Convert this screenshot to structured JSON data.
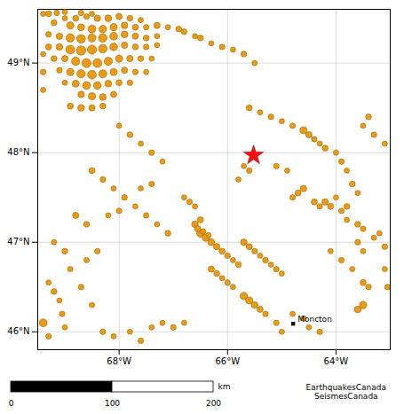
{
  "chart_data": {
    "type": "scatter",
    "xlim": [
      -69.5,
      -63.0
    ],
    "ylim": [
      45.8,
      49.6
    ],
    "xticks": [
      {
        "value": -68,
        "label": "68°W"
      },
      {
        "value": -66,
        "label": "66°W"
      },
      {
        "value": -64,
        "label": "64°W"
      }
    ],
    "yticks": [
      {
        "value": 46,
        "label": "46°N"
      },
      {
        "value": 47,
        "label": "47°N"
      },
      {
        "value": 48,
        "label": "48°N"
      },
      {
        "value": 49,
        "label": "49°N"
      }
    ],
    "grid": true,
    "series": [
      {
        "marker": "circle",
        "color": "#e8960a",
        "points": [
          [
            -69.0,
            49.5,
            8
          ],
          [
            -68.8,
            49.5,
            14
          ],
          [
            -68.6,
            49.52,
            10
          ],
          [
            -68.4,
            49.5,
            18
          ],
          [
            -68.2,
            49.5,
            22
          ],
          [
            -68.0,
            49.52,
            16
          ],
          [
            -67.8,
            49.5,
            12
          ],
          [
            -67.6,
            49.48,
            8
          ],
          [
            -69.2,
            49.45,
            12
          ],
          [
            -68.9,
            49.42,
            30
          ],
          [
            -68.7,
            49.4,
            24
          ],
          [
            -68.5,
            49.38,
            40
          ],
          [
            -68.3,
            49.38,
            35
          ],
          [
            -68.1,
            49.4,
            28
          ],
          [
            -67.9,
            49.42,
            20
          ],
          [
            -67.7,
            49.4,
            14
          ],
          [
            -67.5,
            49.4,
            10
          ],
          [
            -67.3,
            49.42,
            16
          ],
          [
            -67.1,
            49.4,
            8
          ],
          [
            -66.9,
            49.38,
            12
          ],
          [
            -69.3,
            49.32,
            10
          ],
          [
            -69.1,
            49.3,
            18
          ],
          [
            -68.9,
            49.28,
            50
          ],
          [
            -68.7,
            49.27,
            60
          ],
          [
            -68.5,
            49.28,
            45
          ],
          [
            -68.3,
            49.28,
            55
          ],
          [
            -68.1,
            49.3,
            38
          ],
          [
            -67.9,
            49.32,
            22
          ],
          [
            -67.7,
            49.3,
            16
          ],
          [
            -67.5,
            49.28,
            12
          ],
          [
            -67.3,
            49.3,
            8
          ],
          [
            -69.3,
            49.18,
            14
          ],
          [
            -69.1,
            49.18,
            20
          ],
          [
            -68.9,
            49.15,
            65
          ],
          [
            -68.7,
            49.14,
            80
          ],
          [
            -68.5,
            49.15,
            70
          ],
          [
            -68.3,
            49.16,
            55
          ],
          [
            -68.1,
            49.18,
            35
          ],
          [
            -67.9,
            49.2,
            18
          ],
          [
            -67.7,
            49.18,
            12
          ],
          [
            -67.5,
            49.18,
            10
          ],
          [
            -67.3,
            49.2,
            8
          ],
          [
            -69.2,
            49.05,
            12
          ],
          [
            -69.0,
            49.05,
            16
          ],
          [
            -68.8,
            49.02,
            50
          ],
          [
            -68.6,
            49.0,
            70
          ],
          [
            -68.4,
            49.0,
            65
          ],
          [
            -68.2,
            49.02,
            45
          ],
          [
            -68.0,
            49.05,
            30
          ],
          [
            -67.8,
            49.05,
            18
          ],
          [
            -67.6,
            49.05,
            12
          ],
          [
            -67.4,
            49.05,
            8
          ],
          [
            -69.1,
            48.92,
            10
          ],
          [
            -68.9,
            48.9,
            30
          ],
          [
            -68.7,
            48.88,
            50
          ],
          [
            -68.5,
            48.87,
            60
          ],
          [
            -68.3,
            48.88,
            45
          ],
          [
            -68.1,
            48.9,
            28
          ],
          [
            -67.9,
            48.92,
            16
          ],
          [
            -67.7,
            48.9,
            10
          ],
          [
            -67.5,
            48.9,
            8
          ],
          [
            -69.0,
            48.78,
            8
          ],
          [
            -68.8,
            48.77,
            25
          ],
          [
            -68.6,
            48.75,
            40
          ],
          [
            -68.4,
            48.75,
            35
          ],
          [
            -68.2,
            48.77,
            22
          ],
          [
            -68.0,
            48.78,
            14
          ],
          [
            -67.8,
            48.78,
            10
          ],
          [
            -68.7,
            48.65,
            18
          ],
          [
            -68.5,
            48.63,
            28
          ],
          [
            -68.3,
            48.62,
            22
          ],
          [
            -68.1,
            48.65,
            14
          ],
          [
            -68.9,
            48.52,
            14
          ],
          [
            -68.7,
            48.5,
            20
          ],
          [
            -68.5,
            48.5,
            16
          ],
          [
            -68.3,
            48.52,
            12
          ],
          [
            -69.4,
            49.55,
            8
          ],
          [
            -69.3,
            49.55,
            12
          ],
          [
            -69.15,
            49.56,
            10
          ],
          [
            -69.0,
            49.57,
            8
          ],
          [
            -68.7,
            49.56,
            10
          ],
          [
            -68.5,
            49.55,
            8
          ],
          [
            -66.8,
            49.35,
            10
          ],
          [
            -66.6,
            49.3,
            8
          ],
          [
            -66.5,
            49.28,
            12
          ],
          [
            -66.3,
            49.22,
            8
          ],
          [
            -66.1,
            49.18,
            10
          ],
          [
            -65.9,
            49.15,
            8
          ],
          [
            -65.7,
            49.1,
            12
          ],
          [
            -65.5,
            49.0,
            8
          ],
          [
            -69.4,
            49.1,
            8
          ],
          [
            -69.4,
            48.9,
            10
          ],
          [
            -69.4,
            48.7,
            8
          ],
          [
            -68.0,
            48.3,
            8
          ],
          [
            -67.8,
            48.2,
            12
          ],
          [
            -67.6,
            48.1,
            8
          ],
          [
            -67.4,
            48.0,
            10
          ],
          [
            -67.2,
            47.9,
            8
          ],
          [
            -68.5,
            47.8,
            14
          ],
          [
            -68.3,
            47.7,
            10
          ],
          [
            -68.1,
            47.6,
            8
          ],
          [
            -67.9,
            47.5,
            12
          ],
          [
            -67.7,
            47.4,
            8
          ],
          [
            -67.5,
            47.3,
            10
          ],
          [
            -67.3,
            47.2,
            8
          ],
          [
            -67.1,
            47.1,
            12
          ],
          [
            -68.8,
            47.3,
            16
          ],
          [
            -68.6,
            47.2,
            12
          ],
          [
            -69.2,
            47.0,
            8
          ],
          [
            -69.0,
            46.9,
            12
          ],
          [
            -68.9,
            46.7,
            8
          ],
          [
            -68.7,
            46.5,
            10
          ],
          [
            -68.5,
            46.3,
            8
          ],
          [
            -69.4,
            46.1,
            40
          ],
          [
            -69.3,
            45.95,
            10
          ],
          [
            -68.3,
            46.0,
            10
          ],
          [
            -68.1,
            45.95,
            8
          ],
          [
            -67.8,
            46.0,
            8
          ],
          [
            -67.6,
            45.9,
            10
          ],
          [
            -67.4,
            46.05,
            8
          ],
          [
            -67.2,
            46.1,
            8
          ],
          [
            -67.0,
            46.05,
            10
          ],
          [
            -66.8,
            46.1,
            8
          ],
          [
            -66.5,
            47.1,
            35
          ],
          [
            -66.4,
            47.05,
            28
          ],
          [
            -66.3,
            47.0,
            22
          ],
          [
            -66.2,
            46.95,
            18
          ],
          [
            -66.1,
            46.9,
            14
          ],
          [
            -66.0,
            46.85,
            10
          ],
          [
            -65.9,
            46.8,
            8
          ],
          [
            -65.8,
            46.75,
            12
          ],
          [
            -66.6,
            47.2,
            20
          ],
          [
            -66.55,
            47.15,
            16
          ],
          [
            -66.5,
            47.25,
            14
          ],
          [
            -66.45,
            47.12,
            10
          ],
          [
            -66.35,
            47.08,
            8
          ],
          [
            -65.7,
            47.0,
            18
          ],
          [
            -65.6,
            46.95,
            14
          ],
          [
            -65.5,
            46.9,
            10
          ],
          [
            -65.4,
            46.85,
            8
          ],
          [
            -65.3,
            46.8,
            12
          ],
          [
            -65.2,
            46.75,
            8
          ],
          [
            -65.1,
            46.7,
            10
          ],
          [
            -65.0,
            46.65,
            8
          ],
          [
            -66.3,
            46.7,
            16
          ],
          [
            -66.2,
            46.65,
            12
          ],
          [
            -66.1,
            46.6,
            8
          ],
          [
            -66.0,
            46.55,
            10
          ],
          [
            -65.9,
            46.5,
            8
          ],
          [
            -65.7,
            46.4,
            32
          ],
          [
            -65.6,
            46.35,
            26
          ],
          [
            -65.5,
            46.3,
            20
          ],
          [
            -65.4,
            46.25,
            14
          ],
          [
            -65.3,
            46.2,
            10
          ],
          [
            -65.1,
            46.1,
            10
          ],
          [
            -65.0,
            46.0,
            8
          ],
          [
            -64.8,
            46.2,
            8
          ],
          [
            -64.6,
            46.15,
            10
          ],
          [
            -64.5,
            46.05,
            8
          ],
          [
            -64.3,
            46.0,
            10
          ],
          [
            -64.1,
            46.9,
            8
          ],
          [
            -63.9,
            46.8,
            10
          ],
          [
            -63.7,
            46.7,
            8
          ],
          [
            -63.5,
            46.55,
            14
          ],
          [
            -63.4,
            46.5,
            10
          ],
          [
            -63.6,
            47.0,
            10
          ],
          [
            -63.5,
            46.9,
            8
          ],
          [
            -63.2,
            47.1,
            8
          ],
          [
            -63.1,
            46.95,
            10
          ],
          [
            -64.2,
            47.45,
            18
          ],
          [
            -64.1,
            47.4,
            14
          ],
          [
            -63.9,
            47.35,
            10
          ],
          [
            -63.8,
            47.25,
            8
          ],
          [
            -63.6,
            47.2,
            12
          ],
          [
            -64.6,
            47.6,
            18
          ],
          [
            -64.7,
            47.55,
            14
          ],
          [
            -64.8,
            47.5,
            10
          ],
          [
            -64.4,
            47.45,
            14
          ],
          [
            -64.3,
            47.4,
            10
          ],
          [
            -64.0,
            47.5,
            8
          ],
          [
            -63.8,
            47.4,
            12
          ],
          [
            -63.5,
            47.15,
            10
          ],
          [
            -63.3,
            47.05,
            8
          ],
          [
            -64.6,
            48.25,
            26
          ],
          [
            -64.5,
            48.2,
            16
          ],
          [
            -64.4,
            48.15,
            10
          ],
          [
            -64.3,
            48.1,
            8
          ],
          [
            -64.2,
            48.05,
            12
          ],
          [
            -64.8,
            48.3,
            10
          ],
          [
            -65.0,
            48.35,
            8
          ],
          [
            -65.2,
            48.4,
            10
          ],
          [
            -65.4,
            48.45,
            8
          ],
          [
            -65.6,
            48.5,
            12
          ],
          [
            -64.0,
            48.0,
            8
          ],
          [
            -63.9,
            47.9,
            10
          ],
          [
            -63.8,
            47.8,
            8
          ],
          [
            -63.7,
            47.65,
            12
          ],
          [
            -63.6,
            47.55,
            8
          ],
          [
            -64.9,
            47.8,
            8
          ],
          [
            -65.1,
            47.85,
            10
          ],
          [
            -65.7,
            47.85,
            8
          ],
          [
            -65.6,
            47.8,
            10
          ],
          [
            -65.8,
            47.7,
            8
          ],
          [
            -63.5,
            48.3,
            8
          ],
          [
            -63.3,
            48.2,
            10
          ],
          [
            -63.1,
            48.1,
            8
          ],
          [
            -63.4,
            48.4,
            12
          ],
          [
            -63.5,
            46.3,
            30
          ],
          [
            -63.6,
            46.25,
            22
          ],
          [
            -63.1,
            46.7,
            8
          ],
          [
            -63.05,
            46.5,
            10
          ],
          [
            -69.3,
            46.55,
            8
          ],
          [
            -69.2,
            46.45,
            12
          ],
          [
            -69.1,
            46.35,
            8
          ],
          [
            -69.05,
            46.2,
            10
          ],
          [
            -69.0,
            46.05,
            8
          ],
          [
            -68.6,
            46.8,
            8
          ],
          [
            -68.4,
            46.9,
            10
          ],
          [
            -68.2,
            47.3,
            8
          ],
          [
            -68.0,
            47.35,
            10
          ],
          [
            -67.6,
            47.6,
            8
          ],
          [
            -67.4,
            47.65,
            10
          ],
          [
            -66.8,
            47.5,
            8
          ],
          [
            -66.7,
            47.45,
            10
          ],
          [
            -66.6,
            47.4,
            8
          ]
        ]
      },
      {
        "marker": "star",
        "color": "red",
        "points": [
          [
            -65.52,
            47.97
          ]
        ]
      },
      {
        "marker": "square",
        "color": "black",
        "points": [
          [
            -64.79,
            46.09
          ]
        ]
      }
    ],
    "annotations": [
      {
        "text": "Moncton",
        "x": -64.79,
        "y": 46.09
      }
    ],
    "scale_bar": {
      "values": [
        0,
        100,
        200
      ],
      "label": "km"
    },
    "caption": "EarthquakesCanada\nSeismesCanada"
  }
}
